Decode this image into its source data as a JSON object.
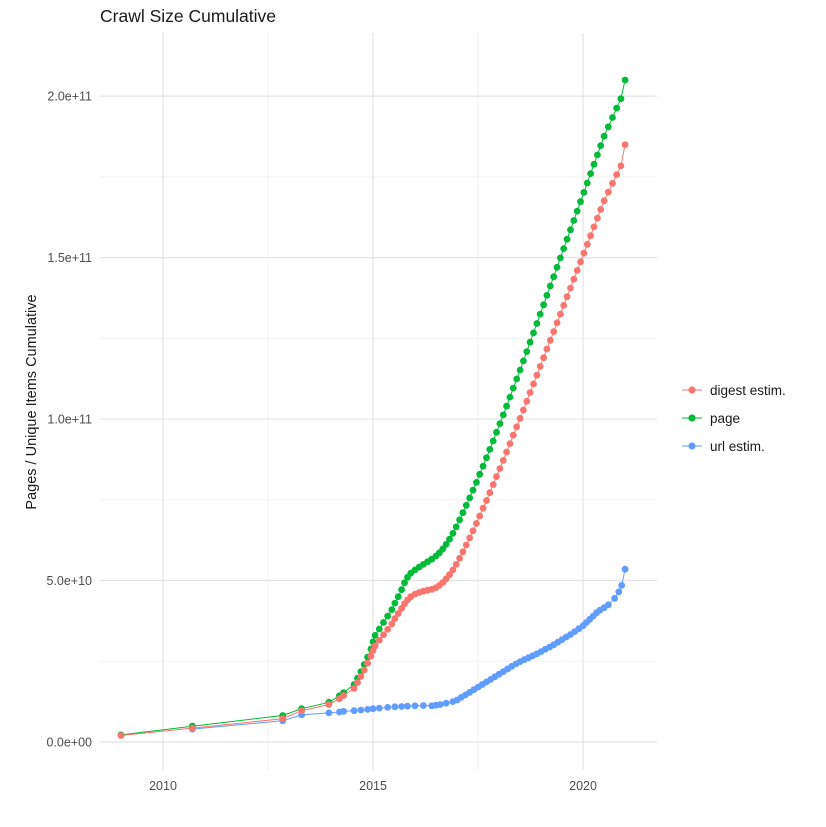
{
  "chart_data": {
    "type": "scatter",
    "title": "Crawl Size Cumulative",
    "xlabel": "",
    "ylabel": "Pages / Unique Items Cumulative",
    "value_unit": "items (values stored as multiples of 1e9)",
    "grid": true,
    "legend_position": "right",
    "xlim": [
      2008.5,
      2021.76
    ],
    "ylim_e9": [
      0,
      205
    ],
    "x_ticks": [
      {
        "value": 2010,
        "label": "2010"
      },
      {
        "value": 2015,
        "label": "2015"
      },
      {
        "value": 2020,
        "label": "2020"
      }
    ],
    "y_ticks": [
      {
        "value_e9": 0,
        "label": "0.0e+00"
      },
      {
        "value_e9": 50,
        "label": "5.0e+10"
      },
      {
        "value_e9": 100,
        "label": "1.0e+11"
      },
      {
        "value_e9": 150,
        "label": "1.5e+11"
      },
      {
        "value_e9": 200,
        "label": "2.0e+11"
      }
    ],
    "x_minor": [
      2012.5,
      2017.5
    ],
    "y_minor_e9": [
      25,
      75,
      125,
      175
    ],
    "colors": {
      "digest": "#F8766D",
      "page": "#00BA38",
      "url": "#619CFF"
    },
    "series": [
      {
        "name": "digest estim.",
        "color": "#F8766D",
        "points": [
          [
            2009.0,
            2.0
          ],
          [
            2010.7,
            4.3
          ],
          [
            2012.85,
            7.2
          ],
          [
            2013.3,
            9.7
          ],
          [
            2013.95,
            11.6
          ],
          [
            2014.2,
            13.4
          ],
          [
            2014.3,
            14.4
          ],
          [
            2014.55,
            16.6
          ],
          [
            2014.63,
            18.4
          ],
          [
            2014.71,
            20.3
          ],
          [
            2014.79,
            22.3
          ],
          [
            2014.87,
            24.4
          ],
          [
            2014.95,
            26.6
          ],
          [
            2015.0,
            28.3
          ],
          [
            2015.05,
            29.8
          ],
          [
            2015.15,
            31.5
          ],
          [
            2015.25,
            33.2
          ],
          [
            2015.35,
            34.9
          ],
          [
            2015.45,
            36.6
          ],
          [
            2015.52,
            38.2
          ],
          [
            2015.6,
            39.8
          ],
          [
            2015.68,
            41.4
          ],
          [
            2015.75,
            42.8
          ],
          [
            2015.82,
            44.0
          ],
          [
            2015.9,
            45.0
          ],
          [
            2016.0,
            45.8
          ],
          [
            2016.1,
            46.3
          ],
          [
            2016.2,
            46.7
          ],
          [
            2016.3,
            47.0
          ],
          [
            2016.4,
            47.3
          ],
          [
            2016.5,
            47.8
          ],
          [
            2016.58,
            48.5
          ],
          [
            2016.66,
            49.4
          ],
          [
            2016.74,
            50.5
          ],
          [
            2016.82,
            51.8
          ],
          [
            2016.9,
            53.3
          ],
          [
            2016.98,
            55.0
          ],
          [
            2017.06,
            56.9
          ],
          [
            2017.14,
            58.9
          ],
          [
            2017.22,
            61.0
          ],
          [
            2017.3,
            63.2
          ],
          [
            2017.38,
            65.4
          ],
          [
            2017.46,
            67.7
          ],
          [
            2017.54,
            70.0
          ],
          [
            2017.62,
            72.4
          ],
          [
            2017.7,
            74.8
          ],
          [
            2017.78,
            77.2
          ],
          [
            2017.86,
            79.7
          ],
          [
            2017.94,
            82.2
          ],
          [
            2018.02,
            84.7
          ],
          [
            2018.1,
            87.2
          ],
          [
            2018.18,
            89.8
          ],
          [
            2018.26,
            92.4
          ],
          [
            2018.34,
            95.0
          ],
          [
            2018.42,
            97.6
          ],
          [
            2018.5,
            100.2
          ],
          [
            2018.58,
            102.8
          ],
          [
            2018.66,
            105.5
          ],
          [
            2018.74,
            108.2
          ],
          [
            2018.82,
            110.9
          ],
          [
            2018.9,
            113.6
          ],
          [
            2018.98,
            116.3
          ],
          [
            2019.06,
            119.0
          ],
          [
            2019.14,
            121.7
          ],
          [
            2019.22,
            124.4
          ],
          [
            2019.3,
            127.1
          ],
          [
            2019.38,
            129.8
          ],
          [
            2019.46,
            132.5
          ],
          [
            2019.54,
            135.2
          ],
          [
            2019.62,
            137.9
          ],
          [
            2019.7,
            140.6
          ],
          [
            2019.78,
            143.3
          ],
          [
            2019.86,
            146.0
          ],
          [
            2019.94,
            148.7
          ],
          [
            2020.02,
            151.4
          ],
          [
            2020.1,
            154.1
          ],
          [
            2020.18,
            156.8
          ],
          [
            2020.26,
            159.5
          ],
          [
            2020.34,
            162.2
          ],
          [
            2020.42,
            164.9
          ],
          [
            2020.5,
            167.6
          ],
          [
            2020.6,
            170.3
          ],
          [
            2020.7,
            173.0
          ],
          [
            2020.8,
            175.7
          ],
          [
            2020.9,
            178.4
          ],
          [
            2021.0,
            185.0
          ]
        ]
      },
      {
        "name": "page",
        "color": "#00BA38",
        "points": [
          [
            2009.0,
            2.2
          ],
          [
            2010.7,
            4.9
          ],
          [
            2012.85,
            8.2
          ],
          [
            2013.3,
            10.3
          ],
          [
            2013.95,
            12.3
          ],
          [
            2014.2,
            14.3
          ],
          [
            2014.3,
            15.3
          ],
          [
            2014.55,
            17.8
          ],
          [
            2014.63,
            19.8
          ],
          [
            2014.71,
            21.8
          ],
          [
            2014.79,
            24.0
          ],
          [
            2014.87,
            26.3
          ],
          [
            2014.95,
            28.8
          ],
          [
            2015.0,
            31.0
          ],
          [
            2015.05,
            33.0
          ],
          [
            2015.15,
            35.0
          ],
          [
            2015.25,
            37.0
          ],
          [
            2015.35,
            39.0
          ],
          [
            2015.45,
            41.0
          ],
          [
            2015.52,
            43.0
          ],
          [
            2015.6,
            45.0
          ],
          [
            2015.68,
            47.2
          ],
          [
            2015.75,
            49.3
          ],
          [
            2015.82,
            51.0
          ],
          [
            2015.9,
            52.3
          ],
          [
            2016.0,
            53.3
          ],
          [
            2016.1,
            54.2
          ],
          [
            2016.2,
            55.0
          ],
          [
            2016.3,
            55.8
          ],
          [
            2016.4,
            56.6
          ],
          [
            2016.5,
            57.6
          ],
          [
            2016.58,
            58.6
          ],
          [
            2016.66,
            59.8
          ],
          [
            2016.74,
            61.2
          ],
          [
            2016.82,
            62.8
          ],
          [
            2016.9,
            64.6
          ],
          [
            2016.98,
            66.6
          ],
          [
            2017.06,
            68.8
          ],
          [
            2017.14,
            71.0
          ],
          [
            2017.22,
            73.3
          ],
          [
            2017.3,
            75.6
          ],
          [
            2017.38,
            78.0
          ],
          [
            2017.46,
            80.4
          ],
          [
            2017.54,
            82.9
          ],
          [
            2017.62,
            85.4
          ],
          [
            2017.7,
            88.0
          ],
          [
            2017.78,
            90.6
          ],
          [
            2017.86,
            93.2
          ],
          [
            2017.94,
            95.9
          ],
          [
            2018.02,
            98.6
          ],
          [
            2018.1,
            101.3
          ],
          [
            2018.18,
            104.0
          ],
          [
            2018.26,
            106.8
          ],
          [
            2018.34,
            109.6
          ],
          [
            2018.42,
            112.4
          ],
          [
            2018.5,
            115.2
          ],
          [
            2018.58,
            118.0
          ],
          [
            2018.66,
            120.9
          ],
          [
            2018.74,
            123.8
          ],
          [
            2018.82,
            126.7
          ],
          [
            2018.9,
            129.6
          ],
          [
            2018.98,
            132.5
          ],
          [
            2019.06,
            135.4
          ],
          [
            2019.14,
            138.3
          ],
          [
            2019.22,
            141.2
          ],
          [
            2019.3,
            144.1
          ],
          [
            2019.38,
            147.0
          ],
          [
            2019.46,
            149.9
          ],
          [
            2019.54,
            152.8
          ],
          [
            2019.62,
            155.7
          ],
          [
            2019.7,
            158.6
          ],
          [
            2019.78,
            161.5
          ],
          [
            2019.86,
            164.4
          ],
          [
            2019.94,
            167.3
          ],
          [
            2020.02,
            170.2
          ],
          [
            2020.1,
            173.1
          ],
          [
            2020.18,
            176.0
          ],
          [
            2020.26,
            178.9
          ],
          [
            2020.34,
            181.8
          ],
          [
            2020.42,
            184.7
          ],
          [
            2020.5,
            187.6
          ],
          [
            2020.6,
            190.5
          ],
          [
            2020.7,
            193.4
          ],
          [
            2020.8,
            196.3
          ],
          [
            2020.9,
            199.2
          ],
          [
            2021.0,
            205.0
          ]
        ]
      },
      {
        "name": "url estim.",
        "color": "#619CFF",
        "points": [
          [
            2010.7,
            4.0
          ],
          [
            2012.85,
            6.6
          ],
          [
            2013.3,
            8.4
          ],
          [
            2013.95,
            9.0
          ],
          [
            2014.2,
            9.3
          ],
          [
            2014.3,
            9.5
          ],
          [
            2014.55,
            9.7
          ],
          [
            2014.71,
            9.9
          ],
          [
            2014.87,
            10.1
          ],
          [
            2015.0,
            10.3
          ],
          [
            2015.15,
            10.5
          ],
          [
            2015.35,
            10.7
          ],
          [
            2015.52,
            10.9
          ],
          [
            2015.68,
            11.0
          ],
          [
            2015.82,
            11.1
          ],
          [
            2016.0,
            11.2
          ],
          [
            2016.2,
            11.3
          ],
          [
            2016.4,
            11.2
          ],
          [
            2016.5,
            11.4
          ],
          [
            2016.6,
            11.6
          ],
          [
            2016.74,
            12.0
          ],
          [
            2016.9,
            12.5
          ],
          [
            2017.0,
            13.0
          ],
          [
            2017.1,
            13.8
          ],
          [
            2017.2,
            14.6
          ],
          [
            2017.3,
            15.4
          ],
          [
            2017.4,
            16.2
          ],
          [
            2017.5,
            17.0
          ],
          [
            2017.6,
            17.8
          ],
          [
            2017.7,
            18.6
          ],
          [
            2017.8,
            19.4
          ],
          [
            2017.9,
            20.2
          ],
          [
            2018.0,
            21.0
          ],
          [
            2018.1,
            21.8
          ],
          [
            2018.2,
            22.6
          ],
          [
            2018.3,
            23.4
          ],
          [
            2018.4,
            24.2
          ],
          [
            2018.5,
            24.9
          ],
          [
            2018.6,
            25.5
          ],
          [
            2018.7,
            26.1
          ],
          [
            2018.8,
            26.7
          ],
          [
            2018.9,
            27.3
          ],
          [
            2019.0,
            28.0
          ],
          [
            2019.1,
            28.7
          ],
          [
            2019.2,
            29.4
          ],
          [
            2019.3,
            30.1
          ],
          [
            2019.4,
            30.9
          ],
          [
            2019.5,
            31.7
          ],
          [
            2019.6,
            32.5
          ],
          [
            2019.7,
            33.3
          ],
          [
            2019.8,
            34.2
          ],
          [
            2019.9,
            35.1
          ],
          [
            2020.0,
            36.0
          ],
          [
            2020.08,
            37.0
          ],
          [
            2020.16,
            38.0
          ],
          [
            2020.24,
            39.0
          ],
          [
            2020.32,
            40.0
          ],
          [
            2020.4,
            40.8
          ],
          [
            2020.5,
            41.6
          ],
          [
            2020.6,
            42.5
          ],
          [
            2020.75,
            44.5
          ],
          [
            2020.85,
            46.5
          ],
          [
            2020.92,
            48.5
          ],
          [
            2021.0,
            53.5
          ]
        ]
      }
    ]
  }
}
